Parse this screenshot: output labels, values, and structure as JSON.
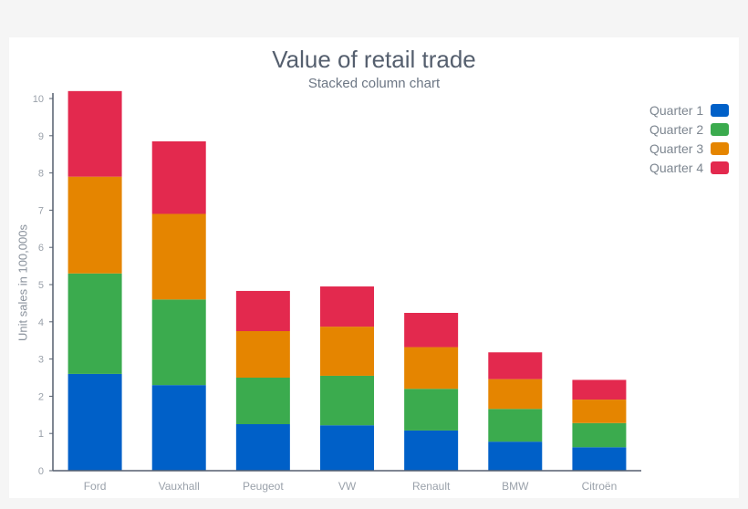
{
  "chart_data": {
    "type": "bar",
    "stacked": true,
    "title": "Value of retail trade",
    "subtitle": "Stacked column chart",
    "xlabel": "",
    "ylabel": "Unit sales in 100,000s",
    "ylim": [
      0,
      10
    ],
    "yticks": [
      "0",
      "1",
      "2",
      "3",
      "4",
      "5",
      "6",
      "7",
      "8",
      "9",
      "10"
    ],
    "categories": [
      "Ford",
      "Vauxhall",
      "Peugeot",
      "VW",
      "Renault",
      "BMW",
      "Citroën"
    ],
    "series": [
      {
        "name": "Quarter 1",
        "color": "#0060c8",
        "values": [
          2.6,
          2.3,
          1.25,
          1.22,
          1.08,
          0.78,
          0.63
        ]
      },
      {
        "name": "Quarter 2",
        "color": "#3bab4e",
        "values": [
          2.7,
          2.3,
          1.25,
          1.33,
          1.12,
          0.88,
          0.65
        ]
      },
      {
        "name": "Quarter 3",
        "color": "#e58500",
        "values": [
          2.6,
          2.3,
          1.25,
          1.32,
          1.12,
          0.8,
          0.63
        ]
      },
      {
        "name": "Quarter 4",
        "color": "#e3294e",
        "values": [
          2.3,
          1.95,
          1.08,
          1.08,
          0.92,
          0.72,
          0.53
        ]
      }
    ],
    "legend_position": "top-right",
    "grid": false
  }
}
